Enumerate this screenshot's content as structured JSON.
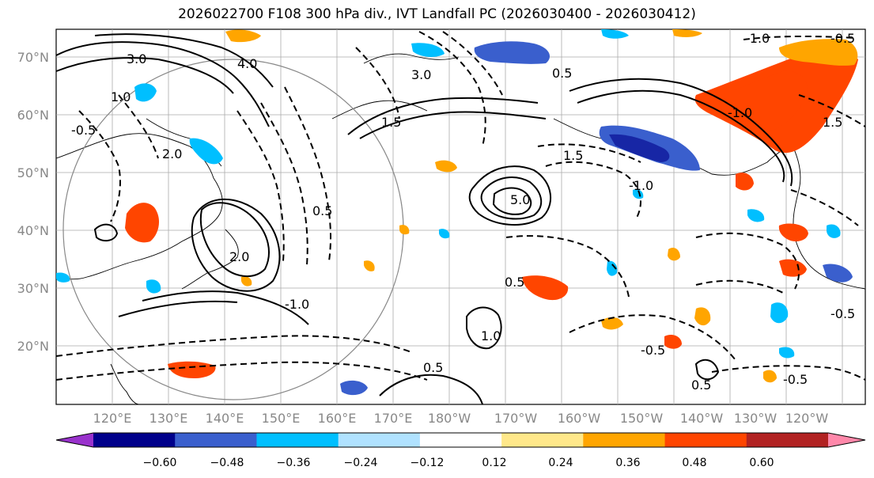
{
  "title": "2026022700 F108 300 hPa div., IVT Landfall PC (2026030400 - 2026030412)",
  "map": {
    "lat_ticks": [
      "70°N",
      "60°N",
      "50°N",
      "40°N",
      "30°N",
      "20°N"
    ],
    "lon_ticks": [
      "120°E",
      "130°E",
      "140°E",
      "150°E",
      "160°E",
      "170°E",
      "180°W",
      "170°W",
      "160°W",
      "150°W",
      "140°W",
      "130°W",
      "120°W"
    ],
    "contour_labels": [
      "-1.0",
      "-0.5",
      "0.5",
      "1.0",
      "1.5",
      "2.0",
      "3.0",
      "4.0",
      "5.0"
    ]
  },
  "colorbar": {
    "colors": [
      "#9932cc",
      "#00008b",
      "#3a5fcd",
      "#00bfff",
      "#b0e2ff",
      "#ffffff",
      "#ffe88a",
      "#ffa500",
      "#ff4500",
      "#b22222",
      "#ff88aa"
    ],
    "tick_labels": [
      "−0.60",
      "−0.48",
      "−0.36",
      "−0.24",
      "−0.12",
      "0.12",
      "0.24",
      "0.36",
      "0.48",
      "0.60"
    ]
  }
}
